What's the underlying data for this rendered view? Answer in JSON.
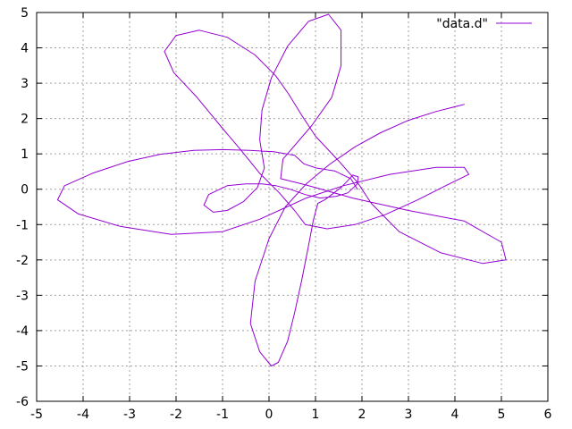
{
  "chart_data": {
    "type": "line",
    "title": "",
    "xlabel": "",
    "ylabel": "",
    "xlim": [
      -5,
      6
    ],
    "ylim": [
      -6,
      5
    ],
    "x_ticks": [
      -5,
      -4,
      -3,
      -2,
      -1,
      0,
      1,
      2,
      3,
      4,
      5,
      6
    ],
    "y_ticks": [
      -6,
      -5,
      -4,
      -3,
      -2,
      -1,
      0,
      1,
      2,
      3,
      4,
      5
    ],
    "grid": true,
    "legend_position": "top-right",
    "series": [
      {
        "name": "\"data.d\"",
        "color": "#9400d3",
        "x": [
          1.9,
          1.76,
          1.41,
          1.02,
          0.75,
          0.55,
          0.1,
          -0.42,
          -1.0,
          -1.62,
          -2.34,
          -3.05,
          -3.8,
          -4.4,
          -4.55,
          -4.1,
          -3.2,
          -2.1,
          -1.0,
          -0.2,
          0.3,
          0.8,
          1.6,
          2.6,
          3.6,
          4.2,
          4.3,
          3.8,
          3.2,
          2.5,
          1.85,
          1.25,
          0.78,
          0.55,
          0.22,
          -0.2,
          -0.6,
          -1.05,
          -1.55,
          -2.05,
          -2.25,
          -2.0,
          -1.5,
          -0.9,
          -0.3,
          0.15,
          0.42,
          0.7,
          1.0,
          1.5,
          1.9,
          2.2,
          2.8,
          3.7,
          4.6,
          5.1,
          5.0,
          4.2,
          3.0,
          1.8,
          0.8,
          0.25,
          0.3,
          0.92,
          1.35,
          1.55,
          1.55,
          1.28,
          0.85,
          0.4,
          0.05,
          -0.15,
          -0.2,
          -0.1,
          -0.25,
          -0.55,
          -0.9,
          -1.2,
          -1.4,
          -1.3,
          -0.9,
          -0.5,
          -0.15,
          0.15,
          0.45,
          0.78,
          1.1,
          1.45,
          1.7,
          1.9,
          1.92,
          1.8,
          1.7,
          1.55,
          1.35,
          1.2,
          1.05,
          0.95,
          0.85,
          0.7,
          0.55,
          0.4,
          0.2,
          0.05,
          -0.2,
          -0.4,
          -0.3,
          0.0,
          0.35,
          0.8,
          1.3,
          1.85,
          2.4,
          3.0,
          3.6,
          4.2
        ],
        "y": [
          0.0,
          0.3,
          0.52,
          0.6,
          0.72,
          0.96,
          1.06,
          1.1,
          1.12,
          1.1,
          0.99,
          0.78,
          0.45,
          0.1,
          -0.3,
          -0.7,
          -1.05,
          -1.28,
          -1.2,
          -0.85,
          -0.55,
          -0.25,
          0.1,
          0.42,
          0.62,
          0.62,
          0.42,
          0.1,
          -0.3,
          -0.72,
          -1.0,
          -1.12,
          -1.0,
          -0.6,
          -0.1,
          0.45,
          1.1,
          1.8,
          2.6,
          3.3,
          3.9,
          4.35,
          4.5,
          4.3,
          3.8,
          3.2,
          2.7,
          2.1,
          1.5,
          0.8,
          0.2,
          -0.4,
          -1.2,
          -1.8,
          -2.1,
          -2.0,
          -1.5,
          -0.9,
          -0.6,
          -0.25,
          0.12,
          0.3,
          0.85,
          1.8,
          2.6,
          3.5,
          4.5,
          4.95,
          4.75,
          4.05,
          3.15,
          2.25,
          1.4,
          0.6,
          0.05,
          -0.35,
          -0.6,
          -0.65,
          -0.45,
          -0.15,
          0.1,
          0.15,
          0.15,
          0.1,
          0.0,
          -0.15,
          -0.25,
          -0.2,
          -0.1,
          0.15,
          0.35,
          0.4,
          0.25,
          0.05,
          -0.15,
          -0.3,
          -0.4,
          -0.9,
          -1.6,
          -2.6,
          -3.5,
          -4.3,
          -4.9,
          -5.0,
          -4.6,
          -3.8,
          -2.6,
          -1.4,
          -0.5,
          0.15,
          0.7,
          1.2,
          1.6,
          1.95,
          2.2,
          2.4
        ]
      }
    ]
  }
}
